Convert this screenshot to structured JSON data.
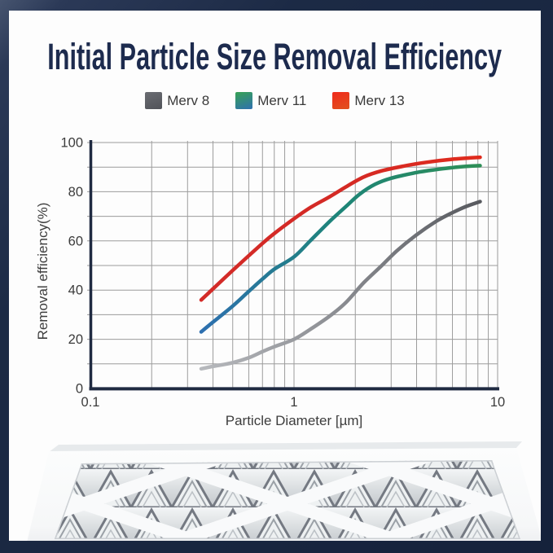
{
  "header": {
    "title": "Initial Particle Size Removal Efficiency"
  },
  "colors": {
    "title_navy": "#1d2b4e",
    "gridline": "#9c9c9c",
    "spine": "#202b42",
    "tick_text": "#3c3c3c"
  },
  "chart_data": {
    "type": "line",
    "x_scale": "log",
    "title": "",
    "xlabel": "Particle Diameter [µm]",
    "ylabel": "Removal efficiency(%)",
    "xlim": [
      0.1,
      10
    ],
    "ylim": [
      0,
      100
    ],
    "grid": true,
    "legend_position": "top",
    "x_tick_labels": [
      {
        "value": 0.1,
        "label": "0.1"
      },
      {
        "value": 1,
        "label": "1"
      },
      {
        "value": 10,
        "label": "10"
      }
    ],
    "y_tick_labels": [
      {
        "value": 0,
        "label": "0"
      },
      {
        "value": 20,
        "label": "20"
      },
      {
        "value": 40,
        "label": "40"
      },
      {
        "value": 60,
        "label": "60"
      },
      {
        "value": 80,
        "label": "80"
      },
      {
        "value": 100,
        "label": "100"
      }
    ],
    "y_grid_step": 10,
    "series": [
      {
        "name": "Merv 8",
        "line_gradient": [
          "#b7b9bd",
          "#8a8c91",
          "#57595e"
        ],
        "legend_gradient": [
          "#6a6c72",
          "#515359"
        ],
        "points": [
          [
            0.35,
            8
          ],
          [
            0.4,
            9
          ],
          [
            0.5,
            10.5
          ],
          [
            0.6,
            12.5
          ],
          [
            0.7,
            15
          ],
          [
            0.8,
            17
          ],
          [
            1,
            20
          ],
          [
            1.2,
            24
          ],
          [
            1.5,
            29.5
          ],
          [
            1.8,
            35
          ],
          [
            2.2,
            43
          ],
          [
            2.7,
            50
          ],
          [
            3.2,
            56
          ],
          [
            4,
            62.5
          ],
          [
            5,
            68
          ],
          [
            6,
            71.5
          ],
          [
            7,
            74
          ],
          [
            8.2,
            76
          ]
        ]
      },
      {
        "name": "Merv 11",
        "line_gradient": [
          "#2e70b0",
          "#1e8578",
          "#2e8f57"
        ],
        "legend_gradient": [
          "#38a254",
          "#2e70b0"
        ],
        "points": [
          [
            0.35,
            23
          ],
          [
            0.4,
            27
          ],
          [
            0.5,
            33.5
          ],
          [
            0.6,
            39.5
          ],
          [
            0.7,
            44.5
          ],
          [
            0.8,
            48.5
          ],
          [
            1,
            53.5
          ],
          [
            1.2,
            60
          ],
          [
            1.5,
            68
          ],
          [
            1.8,
            74
          ],
          [
            2.1,
            79
          ],
          [
            2.5,
            83
          ],
          [
            3,
            85.5
          ],
          [
            4,
            87.8
          ],
          [
            5,
            89
          ],
          [
            6,
            89.8
          ],
          [
            7,
            90.3
          ],
          [
            8.2,
            90.6
          ]
        ]
      },
      {
        "name": "Merv 13",
        "line_gradient": [
          "#d32b28",
          "#d42a25",
          "#e02b1d"
        ],
        "legend_gradient": [
          "#ef2a1c",
          "#e1511d"
        ],
        "points": [
          [
            0.35,
            36
          ],
          [
            0.4,
            40.5
          ],
          [
            0.5,
            48
          ],
          [
            0.6,
            54
          ],
          [
            0.7,
            59
          ],
          [
            0.8,
            63
          ],
          [
            1,
            69
          ],
          [
            1.2,
            73.5
          ],
          [
            1.5,
            78
          ],
          [
            1.8,
            82
          ],
          [
            2.2,
            86
          ],
          [
            2.7,
            88.5
          ],
          [
            3.5,
            90.5
          ],
          [
            4.5,
            92
          ],
          [
            6,
            93.2
          ],
          [
            8.2,
            94
          ]
        ]
      }
    ]
  },
  "illustration": {
    "name": "pleated-air-filter-photo"
  }
}
